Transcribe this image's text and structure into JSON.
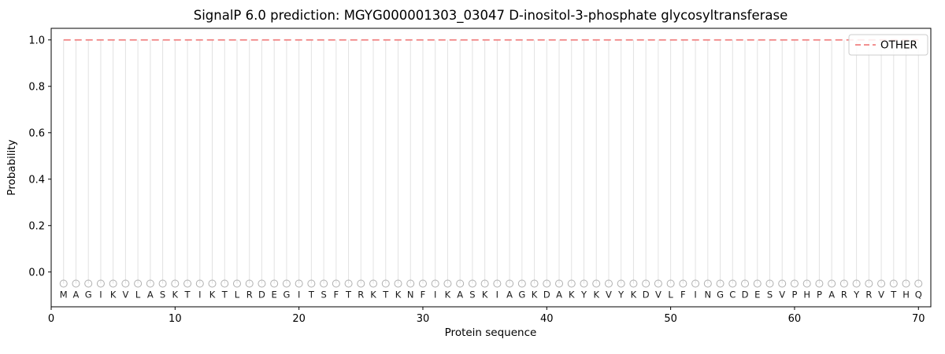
{
  "chart_data": {
    "type": "line",
    "title": "SignalP 6.0 prediction: MGYG000001303_03047 D-inositol-3-phosphate glycosyltransferase",
    "xlabel": "Protein sequence",
    "ylabel": "Probability",
    "xlim": [
      0,
      71
    ],
    "ylim": [
      -0.15,
      1.05
    ],
    "xticks": [
      0,
      10,
      20,
      30,
      40,
      50,
      60,
      70
    ],
    "yticks": [
      0.0,
      0.2,
      0.4,
      0.6,
      0.8,
      1.0
    ],
    "ytick_labels": [
      "0.0",
      "0.2",
      "0.4",
      "0.6",
      "0.8",
      "1.0"
    ],
    "grid": "vertical-line-per-residue",
    "grid_color": "#e2e2e2",
    "axes_color": "#000000",
    "legend": {
      "position": "upper-right",
      "entries": [
        {
          "label": "OTHER",
          "color": "#f08080",
          "linestyle": "dashed"
        }
      ]
    },
    "marker": {
      "shape": "open-circle",
      "y": -0.05,
      "color": "#b0b0b0"
    },
    "sequence": [
      "M",
      "A",
      "G",
      "I",
      "K",
      "V",
      "L",
      "A",
      "S",
      "K",
      "T",
      "I",
      "K",
      "T",
      "L",
      "R",
      "D",
      "E",
      "G",
      "I",
      "T",
      "S",
      "F",
      "T",
      "R",
      "K",
      "T",
      "K",
      "N",
      "F",
      "I",
      "K",
      "A",
      "S",
      "K",
      "I",
      "A",
      "G",
      "K",
      "D",
      "A",
      "K",
      "Y",
      "K",
      "V",
      "Y",
      "K",
      "D",
      "V",
      "L",
      "F",
      "I",
      "N",
      "G",
      "C",
      "D",
      "E",
      "S",
      "V",
      "P",
      "H",
      "P",
      "A",
      "R",
      "Y",
      "R",
      "V",
      "T",
      "H",
      "Q"
    ],
    "series": [
      {
        "name": "OTHER",
        "color": "#f08080",
        "linestyle": "dashed",
        "x_start": 1,
        "values": [
          1.0,
          1.0,
          1.0,
          1.0,
          1.0,
          1.0,
          1.0,
          1.0,
          1.0,
          1.0,
          1.0,
          1.0,
          1.0,
          1.0,
          1.0,
          1.0,
          1.0,
          1.0,
          1.0,
          1.0,
          1.0,
          1.0,
          1.0,
          1.0,
          1.0,
          1.0,
          1.0,
          1.0,
          1.0,
          1.0,
          1.0,
          1.0,
          1.0,
          1.0,
          1.0,
          1.0,
          1.0,
          1.0,
          1.0,
          1.0,
          1.0,
          1.0,
          1.0,
          1.0,
          1.0,
          1.0,
          1.0,
          1.0,
          1.0,
          1.0,
          1.0,
          1.0,
          1.0,
          1.0,
          1.0,
          1.0,
          1.0,
          1.0,
          1.0,
          1.0,
          1.0,
          1.0,
          1.0,
          1.0,
          1.0,
          1.0,
          1.0,
          1.0,
          1.0,
          1.0
        ]
      }
    ]
  }
}
